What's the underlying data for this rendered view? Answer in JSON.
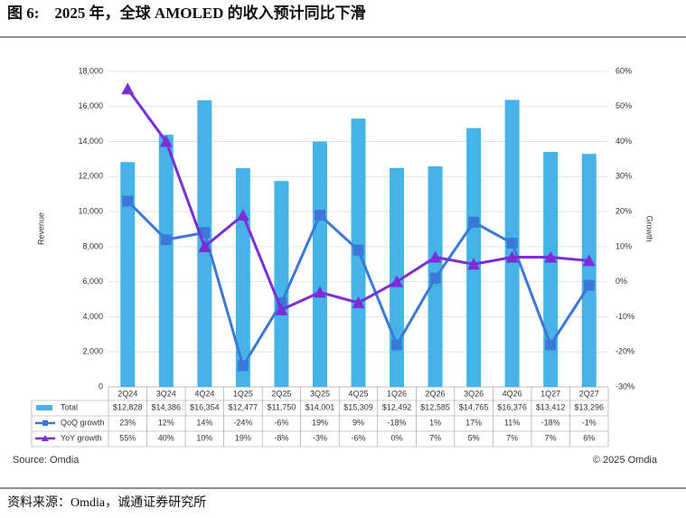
{
  "title": "图 6:　2025 年，全球 AMOLED 的收入预计同比下滑",
  "source": "资料来源：Omdia，诚通证券研究所",
  "chart_data": {
    "type": "bar",
    "ylabel": "Revenue",
    "y2label": "Growth",
    "source_note": "Source: Omdia",
    "copyright": "© 2025 Omdia",
    "categories": [
      "2Q24",
      "3Q24",
      "4Q24",
      "1Q25",
      "2Q25",
      "3Q25",
      "4Q25",
      "1Q26",
      "2Q26",
      "3Q26",
      "4Q26",
      "1Q27",
      "2Q27"
    ],
    "ylim": [
      0,
      18000
    ],
    "yticks": [
      0,
      {
        "value": 2000,
        "label": "2,000"
      },
      {
        "value": 4000,
        "label": "4,000"
      },
      {
        "value": 6000,
        "label": "6,000"
      },
      {
        "value": 8000,
        "label": "8,000"
      },
      {
        "value": 10000,
        "label": "10,000"
      },
      {
        "value": 12000,
        "label": "12,000"
      },
      {
        "value": 14000,
        "label": "14,000"
      },
      {
        "value": 16000,
        "label": "16,000"
      },
      {
        "value": 18000,
        "label": "18,000"
      }
    ],
    "y2lim": [
      -30,
      60
    ],
    "y2ticks": [
      {
        "value": -30,
        "label": "-30%"
      },
      {
        "value": -20,
        "label": "-20%"
      },
      {
        "value": -10,
        "label": "-10%"
      },
      {
        "value": 0,
        "label": "0%"
      },
      {
        "value": 10,
        "label": "10%"
      },
      {
        "value": 20,
        "label": "20%"
      },
      {
        "value": 30,
        "label": "30%"
      },
      {
        "value": 40,
        "label": "40%"
      },
      {
        "value": 50,
        "label": "50%"
      },
      {
        "value": 60,
        "label": "60%"
      }
    ],
    "series": [
      {
        "name": "Total",
        "type": "bar",
        "color": "#45b3e8",
        "values": [
          12828,
          14386,
          16354,
          12477,
          11750,
          14001,
          15309,
          12492,
          12585,
          14765,
          16376,
          13412,
          13296
        ],
        "value_labels": [
          "$12,828",
          "$14,386",
          "$16,354",
          "$12,477",
          "$11,750",
          "$14,001",
          "$15,309",
          "$12,492",
          "$12,585",
          "$14,765",
          "$16,376",
          "$13,412",
          "$13,296"
        ]
      },
      {
        "name": "QoQ growth",
        "type": "line",
        "axis": "y2",
        "marker": "square",
        "color": "#3b78d8",
        "values": [
          23,
          12,
          14,
          -24,
          -6,
          19,
          9,
          -18,
          1,
          17,
          11,
          -18,
          -1
        ],
        "value_labels": [
          "23%",
          "12%",
          "14%",
          "-24%",
          "-6%",
          "19%",
          "9%",
          "-18%",
          "1%",
          "17%",
          "11%",
          "-18%",
          "-1%"
        ]
      },
      {
        "name": "YoY growth",
        "type": "line",
        "axis": "y2",
        "marker": "triangle",
        "color": "#7b2ed8",
        "values": [
          55,
          40,
          10,
          19,
          -8,
          -3,
          -6,
          0,
          7,
          5,
          7,
          7,
          6
        ],
        "value_labels": [
          "55%",
          "40%",
          "10%",
          "19%",
          "-8%",
          "-3%",
          "-6%",
          "0%",
          "7%",
          "5%",
          "7%",
          "7%",
          "6%"
        ]
      }
    ]
  }
}
